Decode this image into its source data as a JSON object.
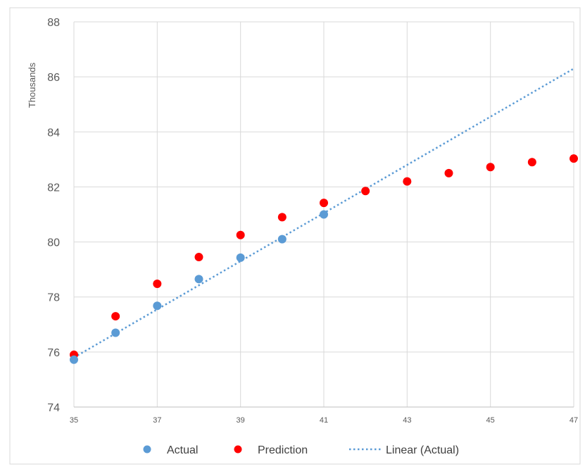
{
  "chart_data": {
    "type": "scatter",
    "title": "",
    "xlabel": "",
    "ylabel": "Thousands",
    "xlim": [
      35,
      47
    ],
    "ylim": [
      74,
      88
    ],
    "x_ticks": [
      35,
      37,
      39,
      41,
      43,
      45,
      47
    ],
    "y_ticks": [
      74,
      76,
      78,
      80,
      82,
      84,
      86,
      88
    ],
    "grid": true,
    "legend_position": "bottom",
    "series": [
      {
        "name": "Actual",
        "type": "scatter",
        "color": "#5B9BD5",
        "points": [
          {
            "x": 35,
            "y": 75.72
          },
          {
            "x": 36,
            "y": 76.7
          },
          {
            "x": 37,
            "y": 77.68
          },
          {
            "x": 38,
            "y": 78.65
          },
          {
            "x": 39,
            "y": 79.43
          },
          {
            "x": 40,
            "y": 80.1
          },
          {
            "x": 41,
            "y": 81.0
          }
        ]
      },
      {
        "name": "Prediction",
        "type": "scatter",
        "color": "#FF0000",
        "points": [
          {
            "x": 35,
            "y": 75.9
          },
          {
            "x": 36,
            "y": 77.3
          },
          {
            "x": 37,
            "y": 78.48
          },
          {
            "x": 38,
            "y": 79.45
          },
          {
            "x": 39,
            "y": 80.25
          },
          {
            "x": 40,
            "y": 80.9
          },
          {
            "x": 41,
            "y": 81.42
          },
          {
            "x": 42,
            "y": 81.85
          },
          {
            "x": 43,
            "y": 82.2
          },
          {
            "x": 44,
            "y": 82.5
          },
          {
            "x": 45,
            "y": 82.72
          },
          {
            "x": 46,
            "y": 82.9
          },
          {
            "x": 47,
            "y": 83.03
          }
        ]
      },
      {
        "name": "Linear (Actual)",
        "type": "trendline",
        "color": "#5B9BD5",
        "line_style": "dotted",
        "x": [
          35,
          47
        ],
        "y": [
          75.8,
          86.3
        ]
      }
    ]
  }
}
